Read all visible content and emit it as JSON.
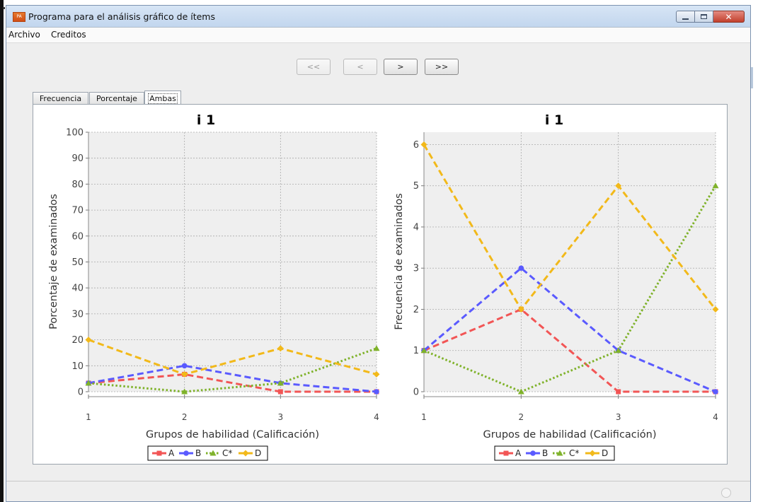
{
  "window": {
    "title": "Programa para el análisis gráfico de ítems",
    "icon": "app-icon",
    "controls": [
      "minimize-icon",
      "maximize-icon",
      "close-icon"
    ]
  },
  "menu": {
    "file": "Archivo",
    "credits": "Creditos"
  },
  "nav": {
    "first": "<<",
    "prev": "<",
    "next": ">",
    "last": ">>"
  },
  "tabs": {
    "frequency": "Frecuencia",
    "percentage": "Porcentaje",
    "both": "Ambas",
    "active": "Ambas"
  },
  "colors": {
    "A": "#f25555",
    "B": "#5a5aff",
    "C": "#7fb22a",
    "D": "#f2b91a",
    "grid": "#aaaaaa",
    "plot_bg": "#efefef"
  },
  "chart_data": [
    {
      "type": "line",
      "title": "i 1",
      "xlabel": "Grupos de habilidad (Calificación)",
      "ylabel": "Porcentaje de examinados",
      "x": [
        1,
        2,
        3,
        4
      ],
      "xticks": [
        "1",
        "2",
        "3",
        "4"
      ],
      "yticks": [
        "0",
        "10",
        "20",
        "30",
        "40",
        "50",
        "60",
        "70",
        "80",
        "90",
        "100"
      ],
      "ylim": [
        0,
        100
      ],
      "grid": true,
      "legend": "bottom",
      "series": [
        {
          "name": "A",
          "values": [
            3.3,
            6.7,
            0,
            0
          ],
          "marker": "square",
          "dash": "dashed"
        },
        {
          "name": "B",
          "values": [
            3.3,
            10,
            3.3,
            0
          ],
          "marker": "circle",
          "dash": "dashed"
        },
        {
          "name": "C*",
          "values": [
            3.3,
            0,
            3.3,
            16.7
          ],
          "marker": "triangle",
          "dash": "dotted"
        },
        {
          "name": "D",
          "values": [
            20,
            6.7,
            16.7,
            6.7
          ],
          "marker": "diamond",
          "dash": "dashed"
        }
      ]
    },
    {
      "type": "line",
      "title": "i 1",
      "xlabel": "Grupos de habilidad (Calificación)",
      "ylabel": "Frecuencia de examinados",
      "x": [
        1,
        2,
        3,
        4
      ],
      "xticks": [
        "1",
        "2",
        "3",
        "4"
      ],
      "yticks": [
        "0",
        "1",
        "2",
        "3",
        "4",
        "5",
        "6"
      ],
      "ylim": [
        0,
        6.3
      ],
      "grid": true,
      "legend": "bottom",
      "series": [
        {
          "name": "A",
          "values": [
            1,
            2,
            0,
            0
          ],
          "marker": "square",
          "dash": "dashed"
        },
        {
          "name": "B",
          "values": [
            1,
            3,
            1,
            0
          ],
          "marker": "circle",
          "dash": "dashed"
        },
        {
          "name": "C*",
          "values": [
            1,
            0,
            1,
            5
          ],
          "marker": "triangle",
          "dash": "dotted"
        },
        {
          "name": "D",
          "values": [
            6,
            2,
            5,
            2
          ],
          "marker": "diamond",
          "dash": "dashed"
        }
      ]
    }
  ]
}
